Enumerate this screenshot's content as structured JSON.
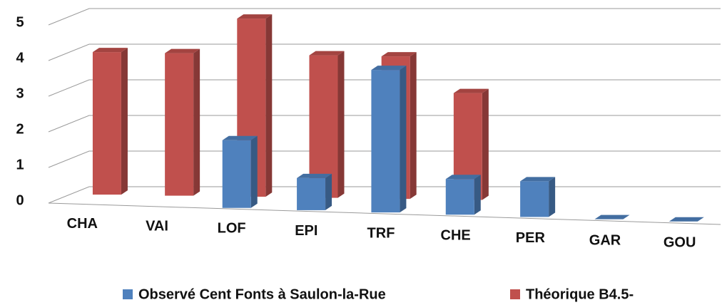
{
  "chart_data": {
    "type": "bar3d",
    "categories": [
      "CHA",
      "VAI",
      "LOF",
      "EPI",
      "TRF",
      "CHE",
      "PER",
      "GAR",
      "GOU"
    ],
    "series": [
      {
        "name": "Observé Cent Fonts à Saulon-la-Rue",
        "color": "#4f81bd",
        "values": [
          null,
          null,
          1.9,
          0.9,
          4.0,
          1.0,
          1.0,
          0,
          0
        ]
      },
      {
        "name": "Théorique B4.5-",
        "color": "#c0504d",
        "values": [
          4,
          4,
          5,
          4,
          4,
          3,
          null,
          null,
          null
        ]
      }
    ],
    "ylim": [
      0,
      5
    ],
    "yticks": [
      0,
      1,
      2,
      3,
      4,
      5
    ],
    "grid": true,
    "legend": "bottom"
  }
}
